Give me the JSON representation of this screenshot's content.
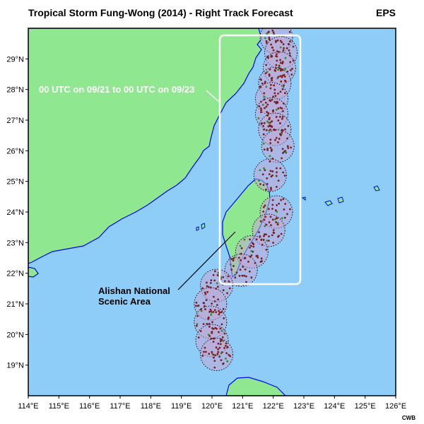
{
  "header": {
    "title": "Tropical Storm Fung-Wong (2014) - Right Track Forecast",
    "model": "EPS"
  },
  "footer": {
    "credit": "CWB"
  },
  "map": {
    "lon_range": [
      114,
      126
    ],
    "lat_range": [
      18,
      30
    ],
    "lon_labels": [
      "114°E",
      "115°E",
      "116°E",
      "117°E",
      "118°E",
      "119°E",
      "120°E",
      "121°E",
      "122°E",
      "123°E",
      "124°E",
      "125°E",
      "126°E"
    ],
    "lat_labels": [
      "19°N",
      "20°N",
      "21°N",
      "22°N",
      "23°N",
      "24°N",
      "25°N",
      "26°N",
      "27°N",
      "28°N",
      "29°N"
    ],
    "colors": {
      "ocean": "#8ecdf8",
      "land": "#8fe88f",
      "coast": "#0000ff",
      "circle_fill": "#c2a8d6",
      "member_dot": "#7a1f1f",
      "highlight_box": "#ffffff"
    },
    "forecast_circles": [
      {
        "lon": 122.1,
        "lat": 29.7
      },
      {
        "lon": 122.25,
        "lat": 29.2
      },
      {
        "lon": 122.2,
        "lat": 28.7
      },
      {
        "lon": 122.05,
        "lat": 28.2
      },
      {
        "lon": 121.95,
        "lat": 27.7
      },
      {
        "lon": 121.95,
        "lat": 27.2
      },
      {
        "lon": 122.05,
        "lat": 26.7
      },
      {
        "lon": 122.15,
        "lat": 26.15
      },
      {
        "lon": 121.9,
        "lat": 25.2
      },
      {
        "lon": 122.1,
        "lat": 24.0
      },
      {
        "lon": 121.85,
        "lat": 23.4
      },
      {
        "lon": 121.3,
        "lat": 22.7
      },
      {
        "lon": 120.95,
        "lat": 22.1
      },
      {
        "lon": 120.15,
        "lat": 21.6
      },
      {
        "lon": 119.95,
        "lat": 21.0
      },
      {
        "lon": 119.95,
        "lat": 20.4
      },
      {
        "lon": 120.0,
        "lat": 19.8
      },
      {
        "lon": 120.15,
        "lat": 19.35
      }
    ]
  },
  "annotations": {
    "time_window": "00 UTC on 09/21 to 00 UTC on 09/23",
    "area_line1": "Alishan National",
    "area_line2": "Scenic Area"
  }
}
